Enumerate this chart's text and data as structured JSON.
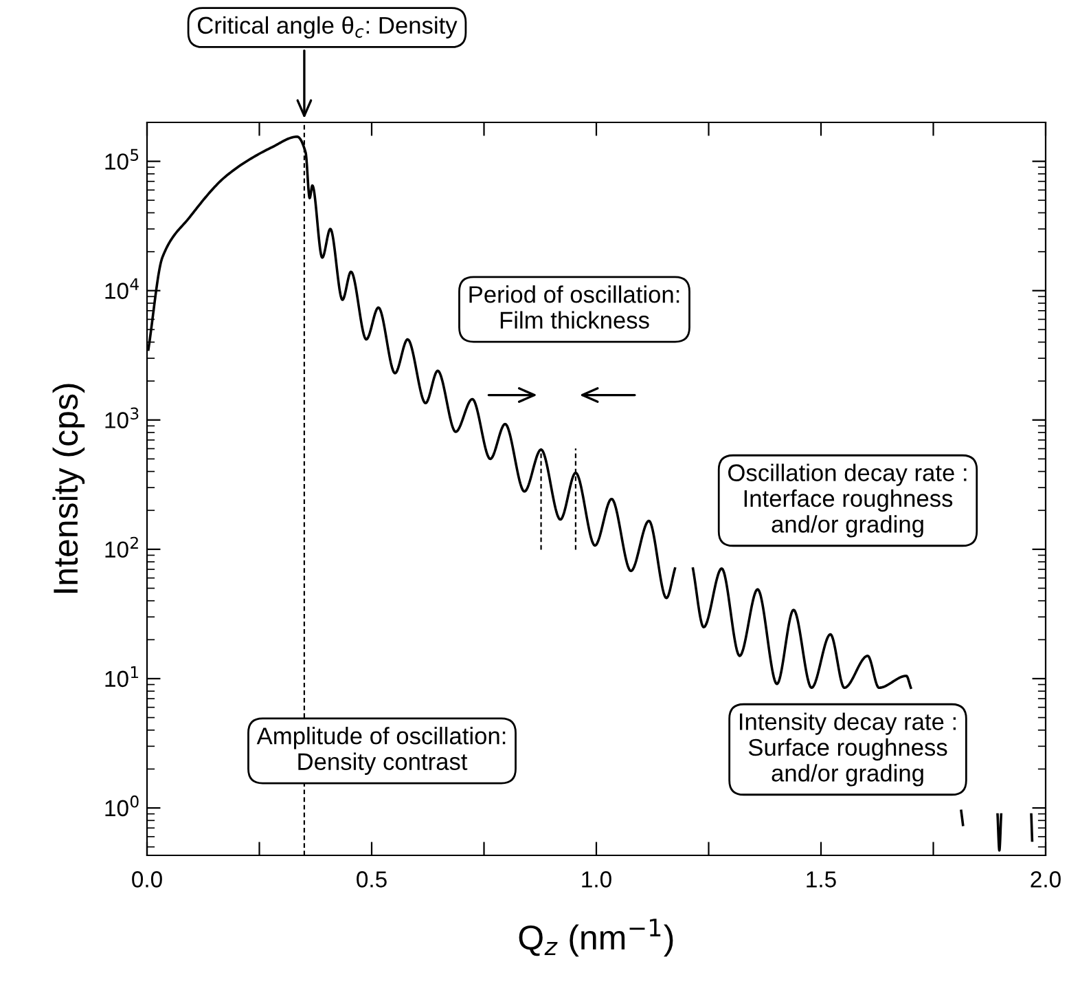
{
  "chart_data": {
    "type": "line",
    "xlabel": "Q$_{z}$ (nm$^{−1}$)",
    "ylabel": "Intensity (cps)",
    "log": "y",
    "grid": false,
    "xlim": [
      0,
      2.0
    ],
    "ylim": [
      0.43,
      200000
    ],
    "xticks": [
      {
        "value": 0,
        "label": "0.0"
      },
      {
        "value": 0.25,
        "label": null
      },
      {
        "value": 0.5,
        "label": "0.5"
      },
      {
        "value": 0.75,
        "label": null
      },
      {
        "value": 1.0,
        "label": "1.0"
      },
      {
        "value": 1.25,
        "label": null
      },
      {
        "value": 1.5,
        "label": "1.5"
      },
      {
        "value": 1.75,
        "label": null
      },
      {
        "value": 2.0,
        "label": "2.0"
      }
    ],
    "yticks": [
      {
        "value": 1,
        "label": "10$^{0}$"
      },
      {
        "value": 10,
        "label": "10$^{1}$"
      },
      {
        "value": 100,
        "label": "10$^{2}$"
      },
      {
        "value": 1000,
        "label": "10$^{3}$"
      },
      {
        "value": 10000,
        "label": "10$^{4}$"
      },
      {
        "value": 100000,
        "label": "10$^{5}$"
      }
    ],
    "series": [
      {
        "color": "#000000",
        "line_style": "solid",
        "x": [
          0.003,
          0.034,
          0.095,
          0.178,
          0.279,
          0.334,
          0.353,
          0.362,
          0.368,
          0.39,
          0.408,
          0.435,
          0.454,
          0.488,
          0.515,
          0.552,
          0.58,
          0.62,
          0.647,
          0.687,
          0.724,
          0.764,
          0.797,
          0.84,
          0.877,
          0.92,
          0.954,
          0.997,
          1.034,
          1.077,
          1.117,
          1.156,
          1.175,
          1.195,
          1.215,
          1.239,
          1.279,
          1.319,
          1.359,
          1.402,
          1.439,
          1.479,
          1.521,
          1.552,
          1.604,
          1.629,
          1.69,
          1.7,
          1.75,
          1.812,
          1.816,
          1.85,
          1.893,
          1.897,
          1.901,
          1.94,
          1.968,
          1.97
        ],
        "values": [
          3500,
          18000,
          37000,
          78000,
          129000,
          155000,
          117000,
          52000,
          65000,
          18000,
          30000,
          8500,
          14000,
          4200,
          7400,
          2300,
          4200,
          1350,
          2400,
          810,
          1450,
          500,
          930,
          280,
          590,
          170,
          390,
          107,
          245,
          68,
          166,
          42,
          71,
          null,
          71,
          25,
          71,
          15,
          49,
          9.1,
          34,
          8.5,
          22,
          8.5,
          15,
          8.5,
          10.5,
          8.5,
          null,
          0.95,
          0.74,
          null,
          0.89,
          0.47,
          0.89,
          null,
          0.89,
          0.56
        ]
      }
    ],
    "ref_lines": [
      {
        "axis": "x",
        "value": 0.35,
        "line_style": "dashed"
      },
      {
        "axis": "x",
        "value": 0.877,
        "line_style": "dashed"
      },
      {
        "axis": "x",
        "value": 0.954,
        "line_style": "dashed"
      }
    ],
    "annotations": [
      "Critical angle θ$_{c}$: Density",
      "Period of oscillation:\nFilm thickness",
      "Oscillation decay rate :\nInterface roughness\nand/or grading",
      "Amplitude of oscillation:\nDensity contrast",
      "Intensity decay rate :\nSurface roughness\nand/or grading"
    ]
  }
}
